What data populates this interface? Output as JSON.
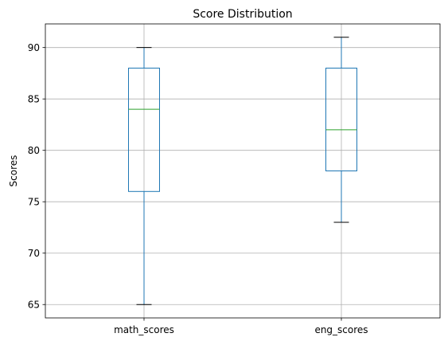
{
  "chart_data": {
    "type": "box",
    "title": "Score Distribution",
    "xlabel": "",
    "ylabel": "Scores",
    "categories": [
      "math_scores",
      "eng_scores"
    ],
    "boxes": [
      {
        "name": "math_scores",
        "whisker_low": 65,
        "q1": 76,
        "median": 84,
        "q3": 88,
        "whisker_high": 90
      },
      {
        "name": "eng_scores",
        "whisker_low": 73,
        "q1": 78,
        "median": 82,
        "q3": 88,
        "whisker_high": 91
      }
    ],
    "ylim": [
      63.7,
      92.3
    ],
    "yticks": [
      65,
      70,
      75,
      80,
      85,
      90
    ],
    "grid": true,
    "colors": {
      "box": "#1f77b4",
      "median": "#2ca02c",
      "grid": "#b0b0b0",
      "cap": "#000000",
      "axis": "#000000"
    }
  }
}
